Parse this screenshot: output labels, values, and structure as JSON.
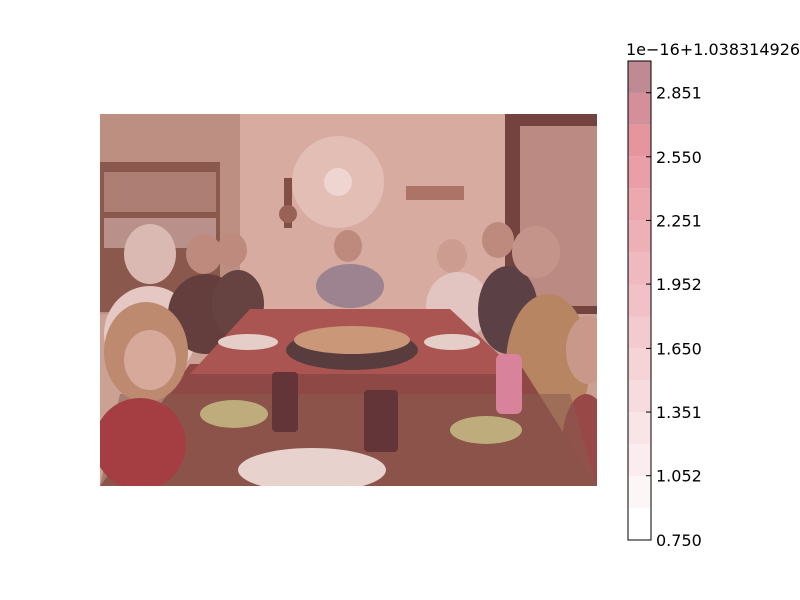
{
  "image": {
    "subject": "family-dinner-photo",
    "tint_color": "#d98c8c"
  },
  "chart_data": {
    "type": "heatmap",
    "colorbar": {
      "offset_label": "1e−16+1.038314926",
      "ticks": [
        0.75,
        1.052,
        1.351,
        1.65,
        1.952,
        2.251,
        2.55,
        2.851
      ],
      "tick_labels": [
        "0.750",
        "1.052",
        "1.351",
        "1.650",
        "1.952",
        "2.251",
        "2.550",
        "2.851"
      ],
      "range": [
        0.75,
        3.0
      ],
      "levels": 15,
      "colormap": "Reds",
      "color_low": "#ffffff",
      "color_high": "#bf8a94"
    }
  }
}
